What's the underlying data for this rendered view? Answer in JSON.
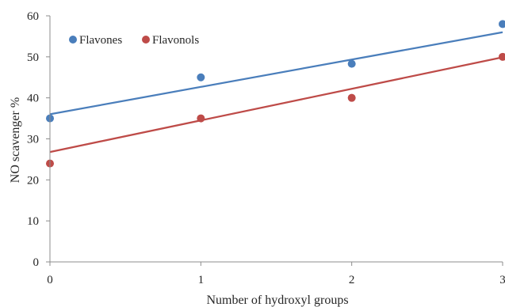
{
  "chart_data": {
    "type": "scatter",
    "title": "",
    "xlabel": "Number of hydroxyl groups",
    "ylabel": "NO scavenger %",
    "xlim": [
      0,
      3
    ],
    "ylim": [
      0,
      60
    ],
    "xticks": [
      "0",
      "1",
      "2",
      "3"
    ],
    "yticks": [
      "0",
      "10",
      "20",
      "30",
      "40",
      "50",
      "60"
    ],
    "grid": false,
    "legend_position": "top-left",
    "series": [
      {
        "name": "Flavones",
        "color": "#4a7ebb",
        "points": [
          {
            "x": 0,
            "y": 35
          },
          {
            "x": 1,
            "y": 45
          },
          {
            "x": 2,
            "y": 48.3
          },
          {
            "x": 3,
            "y": 58
          }
        ],
        "trendline": {
          "x": [
            0,
            3
          ],
          "y": [
            36,
            56
          ]
        }
      },
      {
        "name": "Flavonols",
        "color": "#be4b48",
        "points": [
          {
            "x": 0,
            "y": 24
          },
          {
            "x": 1,
            "y": 35
          },
          {
            "x": 2,
            "y": 40
          },
          {
            "x": 3,
            "y": 50
          }
        ],
        "trendline": {
          "x": [
            0,
            3
          ],
          "y": [
            26.8,
            49.9
          ]
        }
      }
    ]
  }
}
